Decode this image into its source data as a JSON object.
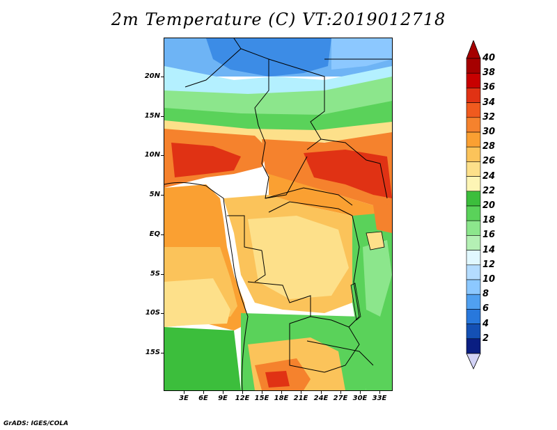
{
  "title": "2m Temperature (C) VT:2019012718",
  "credit": "GrADS: IGES/COLA",
  "map": {
    "lat_labels": [
      "20N",
      "15N",
      "10N",
      "5N",
      "EQ",
      "5S",
      "10S",
      "15S"
    ],
    "lon_labels": [
      "3E",
      "6E",
      "9E",
      "12E",
      "15E",
      "18E",
      "21E",
      "24E",
      "27E",
      "30E",
      "33E"
    ]
  },
  "colorbar": {
    "labels": [
      "40",
      "38",
      "36",
      "34",
      "32",
      "30",
      "28",
      "26",
      "24",
      "22",
      "20",
      "18",
      "16",
      "14",
      "12",
      "10",
      "8",
      "6",
      "4",
      "2"
    ],
    "colors": [
      "#a50000",
      "#c80000",
      "#e03214",
      "#f05a1e",
      "#f5822d",
      "#faa032",
      "#fbc35a",
      "#fde08a",
      "#fdf5b5",
      "#3cbe3c",
      "#5ad25a",
      "#8ce68c",
      "#b4f0b4",
      "#e1f8ff",
      "#b4dcff",
      "#8cc8ff",
      "#50a0f0",
      "#2878dc",
      "#1450b4",
      "#0a1e82"
    ],
    "above_color": "#a50000",
    "below_color": "#d2d2f5"
  }
}
